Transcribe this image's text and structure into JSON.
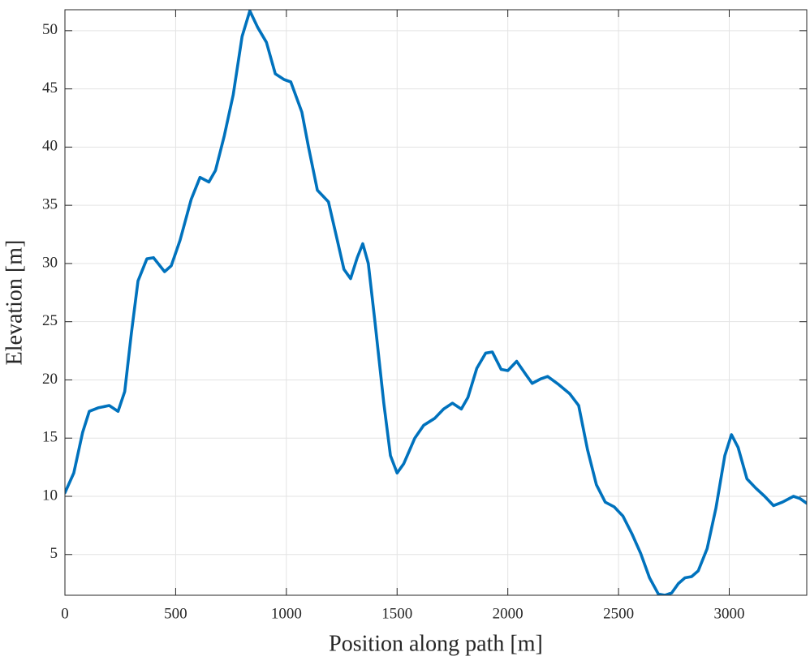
{
  "chart_data": {
    "type": "line",
    "xlabel": "Position along path [m]",
    "ylabel": "Elevation [m]",
    "x": [
      0,
      40,
      80,
      110,
      150,
      200,
      240,
      270,
      300,
      330,
      370,
      400,
      450,
      480,
      520,
      570,
      610,
      650,
      680,
      720,
      760,
      800,
      835,
      870,
      910,
      950,
      990,
      1020,
      1070,
      1100,
      1140,
      1190,
      1230,
      1260,
      1290,
      1320,
      1345,
      1370,
      1400,
      1440,
      1470,
      1500,
      1530,
      1580,
      1620,
      1670,
      1710,
      1750,
      1790,
      1820,
      1860,
      1900,
      1930,
      1970,
      2000,
      2040,
      2080,
      2110,
      2150,
      2180,
      2230,
      2280,
      2320,
      2360,
      2400,
      2440,
      2480,
      2520,
      2560,
      2600,
      2640,
      2680,
      2710,
      2740,
      2770,
      2800,
      2830,
      2860,
      2900,
      2940,
      2980,
      3010,
      3040,
      3080,
      3120,
      3160,
      3200,
      3240,
      3290,
      3320,
      3350
    ],
    "series": [
      {
        "name": "Elevation",
        "color": "#0072bd",
        "values": [
          10.3,
          12,
          15.5,
          17.3,
          17.6,
          17.8,
          17.3,
          19,
          24,
          28.5,
          30.4,
          30.5,
          29.3,
          29.8,
          32,
          35.5,
          37.4,
          37,
          38,
          41,
          44.5,
          49.5,
          51.7,
          50.3,
          49,
          46.3,
          45.8,
          45.6,
          43,
          40,
          36.3,
          35.3,
          32,
          29.5,
          28.7,
          30.5,
          31.7,
          30,
          25,
          18,
          13.5,
          12,
          12.8,
          15,
          16.1,
          16.7,
          17.5,
          18,
          17.5,
          18.5,
          21,
          22.3,
          22.4,
          20.9,
          20.8,
          21.6,
          20.5,
          19.7,
          20.1,
          20.3,
          19.6,
          18.8,
          17.8,
          14,
          11,
          9.5,
          9.1,
          8.3,
          6.8,
          5.1,
          3,
          1.6,
          1.5,
          1.7,
          2.5,
          3,
          3.1,
          3.6,
          5.5,
          9,
          13.5,
          15.3,
          14.2,
          11.5,
          10.7,
          10,
          9.2,
          9.5,
          10,
          9.8,
          9.4
        ]
      }
    ],
    "xlim": [
      0,
      3350
    ],
    "ylim": [
      1.5,
      51.8
    ],
    "xticks": [
      0,
      500,
      1000,
      1500,
      2000,
      2500,
      3000
    ],
    "yticks": [
      5,
      10,
      15,
      20,
      25,
      30,
      35,
      40,
      45,
      50
    ],
    "grid": true
  }
}
